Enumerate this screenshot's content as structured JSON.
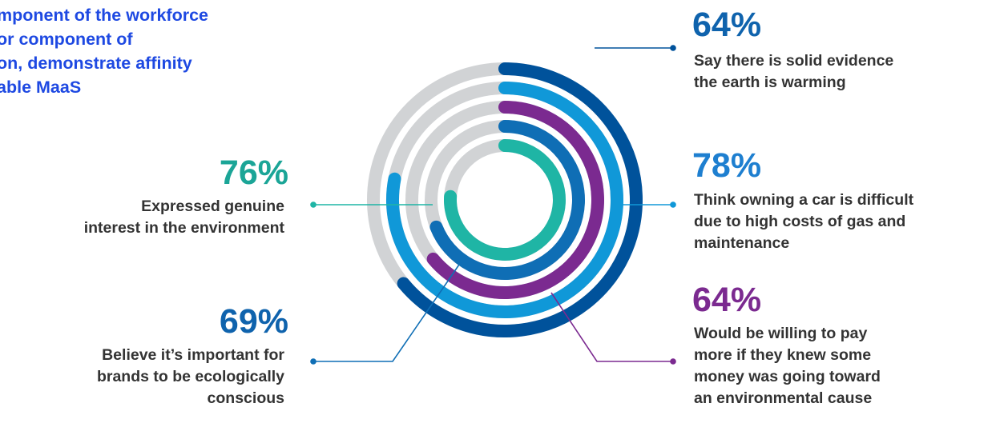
{
  "colors": {
    "title": "#1e49e2",
    "track": "#d1d3d5",
    "dark_blue": "#00529b",
    "light_blue": "#1098d8",
    "purple": "#7b2a90",
    "medium_blue": "#0f6eb5",
    "teal": "#1fb5a5",
    "label_text": "#333333",
    "pct_teal": "#1ba597",
    "pct_darkblue": "#0f63ad",
    "pct_blue": "#1e7fd0",
    "pct_purple": "#7b2a90"
  },
  "title_lines": [
    "mponent of the workforce",
    "or component of",
    "on, demonstrate affinity",
    "able MaaS"
  ],
  "stats": {
    "s1": {
      "percent": "76%",
      "lines": [
        "Expressed genuine",
        "interest in the environment"
      ]
    },
    "s2": {
      "percent": "69%",
      "lines": [
        "Believe it’s important for",
        "brands to be ecologically",
        "conscious"
      ]
    },
    "s3": {
      "percent": "64%",
      "lines": [
        "Say there is solid evidence",
        "the earth is warming"
      ]
    },
    "s4": {
      "percent": "78%",
      "lines": [
        "Think owning a car is difficult",
        "due to high costs of gas and",
        "maintenance"
      ]
    },
    "s5": {
      "percent": "64%",
      "lines": [
        "Would be willing to pay",
        "more if they knew some",
        "money was going toward",
        "an environmental cause"
      ]
    }
  },
  "chart_data": {
    "type": "radial-bar",
    "unit": "%",
    "range": [
      0,
      100
    ],
    "rings_outer_to_inner": [
      {
        "value": 64,
        "color": "#00529b",
        "label": "Say there is solid evidence the earth is warming"
      },
      {
        "value": 78,
        "color": "#1098d8",
        "label": "Think owning a car is difficult due to high costs of gas and maintenance"
      },
      {
        "value": 64,
        "color": "#7b2a90",
        "label": "Would be willing to pay more if they knew some money was going toward an environmental cause"
      },
      {
        "value": 69,
        "color": "#0f6eb5",
        "label": "Believe it’s important for brands to be ecologically conscious"
      },
      {
        "value": 76,
        "color": "#1fb5a5",
        "label": "Expressed genuine interest in the environment"
      }
    ]
  }
}
